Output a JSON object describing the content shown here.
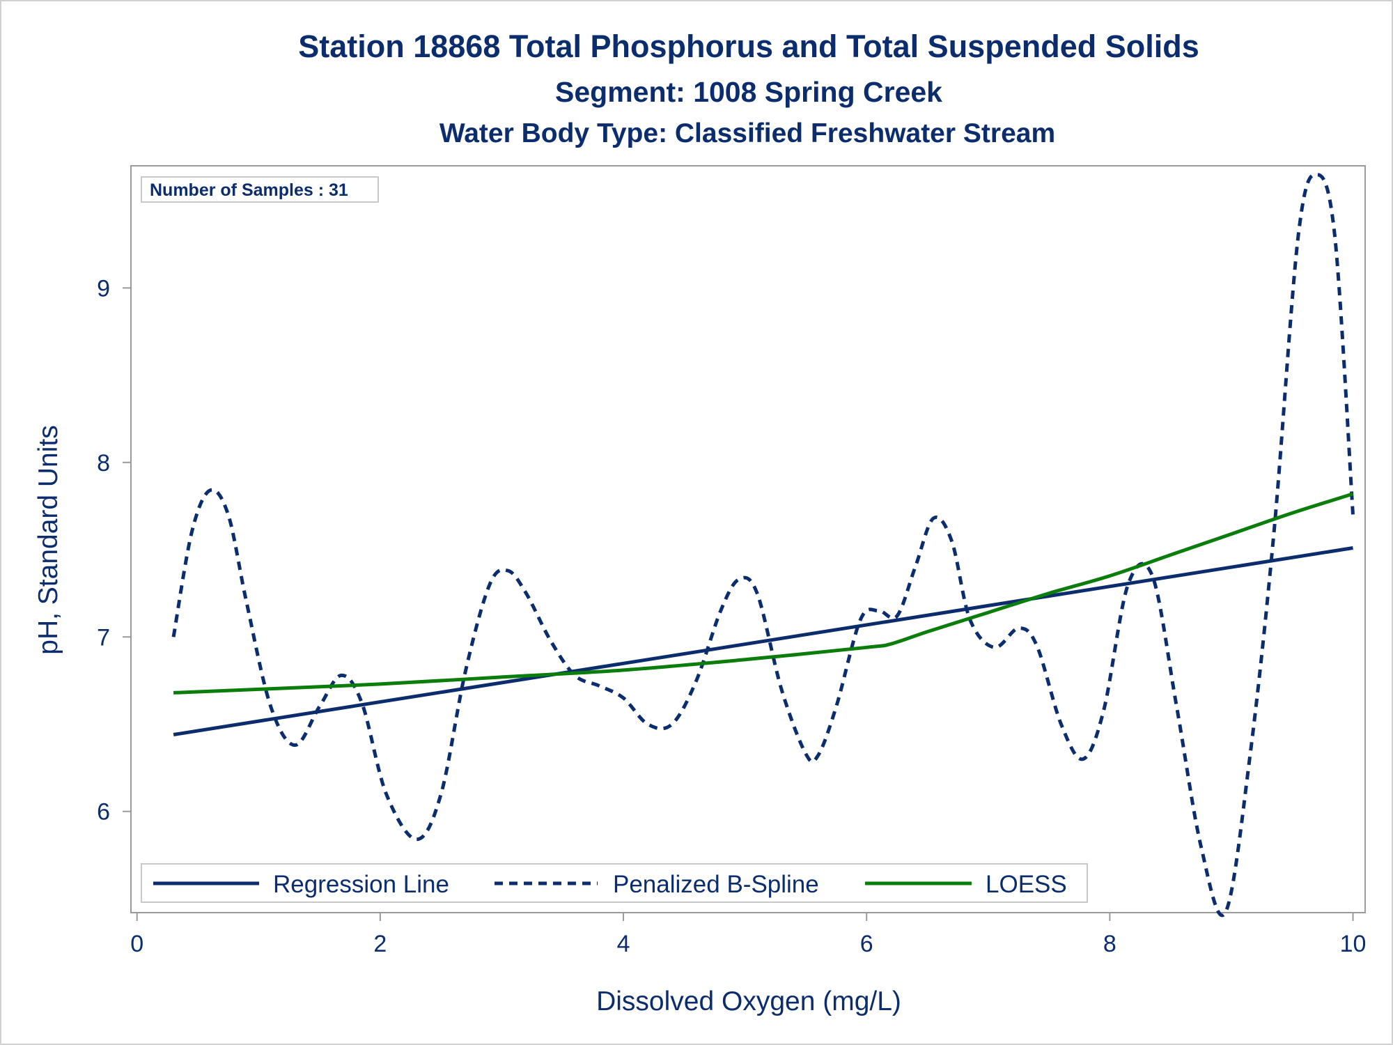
{
  "chart_data": {
    "type": "line",
    "title": "Station 18868  Total Phosphorus and Total Suspended Solids",
    "subtitle": "Segment: 1008  Spring Creek",
    "subtitle2": "Water Body Type: Classified Freshwater Stream",
    "annotation": "Number of Samples : 31",
    "xlabel": "Dissolved Oxygen (mg/L)",
    "ylabel": "pH, Standard Units",
    "xlim": [
      -0.05,
      10.1
    ],
    "ylim": [
      5.42,
      9.7
    ],
    "x_ticks": [
      0,
      2,
      4,
      6,
      8,
      10
    ],
    "y_ticks": [
      6,
      7,
      8,
      9
    ],
    "legend_position": "bottom-left-inside",
    "series": [
      {
        "name": "Regression Line",
        "style": "solid",
        "color": "#0b2d6e",
        "x": [
          0.3,
          10.0
        ],
        "y": [
          6.44,
          7.51
        ]
      },
      {
        "name": "Penalized B-Spline",
        "style": "dashed",
        "color": "#0b2d6e",
        "x": [
          0.3,
          0.45,
          0.6,
          0.75,
          0.9,
          1.1,
          1.3,
          1.5,
          1.68,
          1.85,
          2.05,
          2.3,
          2.5,
          2.7,
          2.9,
          3.05,
          3.2,
          3.4,
          3.6,
          3.8,
          4.0,
          4.2,
          4.4,
          4.6,
          4.8,
          4.95,
          5.1,
          5.3,
          5.5,
          5.6,
          5.75,
          5.95,
          6.1,
          6.25,
          6.4,
          6.55,
          6.7,
          6.85,
          7.05,
          7.25,
          7.4,
          7.6,
          7.78,
          7.95,
          8.15,
          8.35,
          8.55,
          8.75,
          8.95,
          9.15,
          9.35,
          9.55,
          9.7,
          9.85,
          10.0
        ],
        "y": [
          7.0,
          7.6,
          7.84,
          7.7,
          7.2,
          6.6,
          6.38,
          6.6,
          6.78,
          6.62,
          6.1,
          5.84,
          6.1,
          6.8,
          7.3,
          7.38,
          7.25,
          6.98,
          6.78,
          6.72,
          6.65,
          6.5,
          6.5,
          6.75,
          7.15,
          7.33,
          7.25,
          6.7,
          6.33,
          6.32,
          6.6,
          7.1,
          7.15,
          7.12,
          7.4,
          7.68,
          7.55,
          7.1,
          6.94,
          7.05,
          6.95,
          6.5,
          6.3,
          6.58,
          7.3,
          7.35,
          6.6,
          5.8,
          5.42,
          6.3,
          7.6,
          9.3,
          9.65,
          9.3,
          7.7
        ]
      },
      {
        "name": "LOESS",
        "style": "solid",
        "color": "#0a7d0a",
        "x": [
          0.3,
          1.0,
          2.0,
          3.0,
          4.0,
          5.0,
          6.0,
          6.2,
          6.5,
          7.0,
          7.5,
          8.0,
          8.5,
          9.0,
          9.5,
          10.0
        ],
        "y": [
          6.68,
          6.7,
          6.73,
          6.77,
          6.81,
          6.87,
          6.94,
          6.96,
          7.03,
          7.14,
          7.25,
          7.35,
          7.47,
          7.59,
          7.71,
          7.82
        ]
      }
    ]
  }
}
